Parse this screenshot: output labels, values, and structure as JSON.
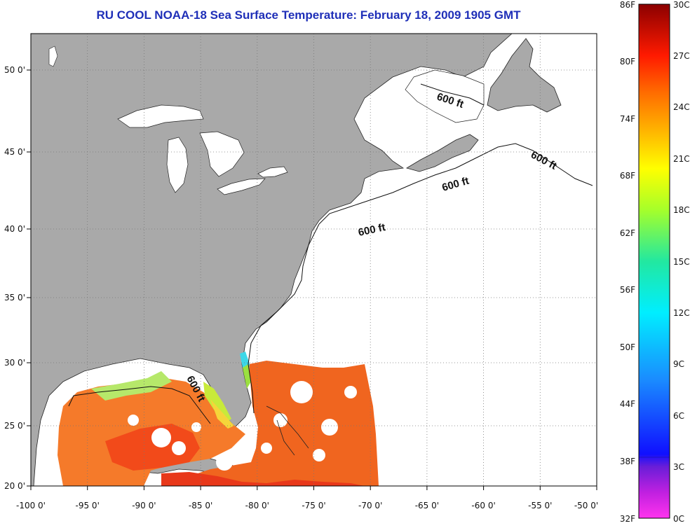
{
  "title": "RU COOL  NOAA-18  Sea Surface Temperature:  February 18, 2009 1905 GMT",
  "map": {
    "lon_labels": [
      "-100 0'",
      "-95 0'",
      "-90 0'",
      "-85 0'",
      "-80 0'",
      "-75 0'",
      "-70 0'",
      "-65 0'",
      "-60 0'",
      "-55 0'",
      "-50 0'"
    ],
    "lat_labels": [
      "50 0'",
      "45 0'",
      "40 0'",
      "35 0'",
      "30 0'",
      "25 0'",
      "20 0'"
    ],
    "isobath_labels": [
      "600 ft",
      "600 ft",
      "600 ft",
      "600 ft",
      "600 ft"
    ],
    "colors": {
      "land": "#a9a9a9",
      "cloud_mask": "#ffffff",
      "grid": "#777777"
    }
  },
  "colorbar": {
    "fahrenheit_labels": [
      "86F",
      "80F",
      "74F",
      "68F",
      "62F",
      "56F",
      "50F",
      "44F",
      "38F",
      "32F"
    ],
    "celsius_labels": [
      "30C",
      "27C",
      "24C",
      "21C",
      "18C",
      "15C",
      "12C",
      "9C",
      "6C",
      "3C",
      "0C"
    ],
    "range_c": [
      0,
      30
    ],
    "range_f": [
      32,
      86
    ],
    "stops": [
      "#ff33ee",
      "#7b1fd8",
      "#1010ff",
      "#1a8cff",
      "#00f0ff",
      "#22e8a0",
      "#a6ff2a",
      "#ffff00",
      "#ffc000",
      "#ff6a00",
      "#ff1a00",
      "#8b0000"
    ]
  }
}
